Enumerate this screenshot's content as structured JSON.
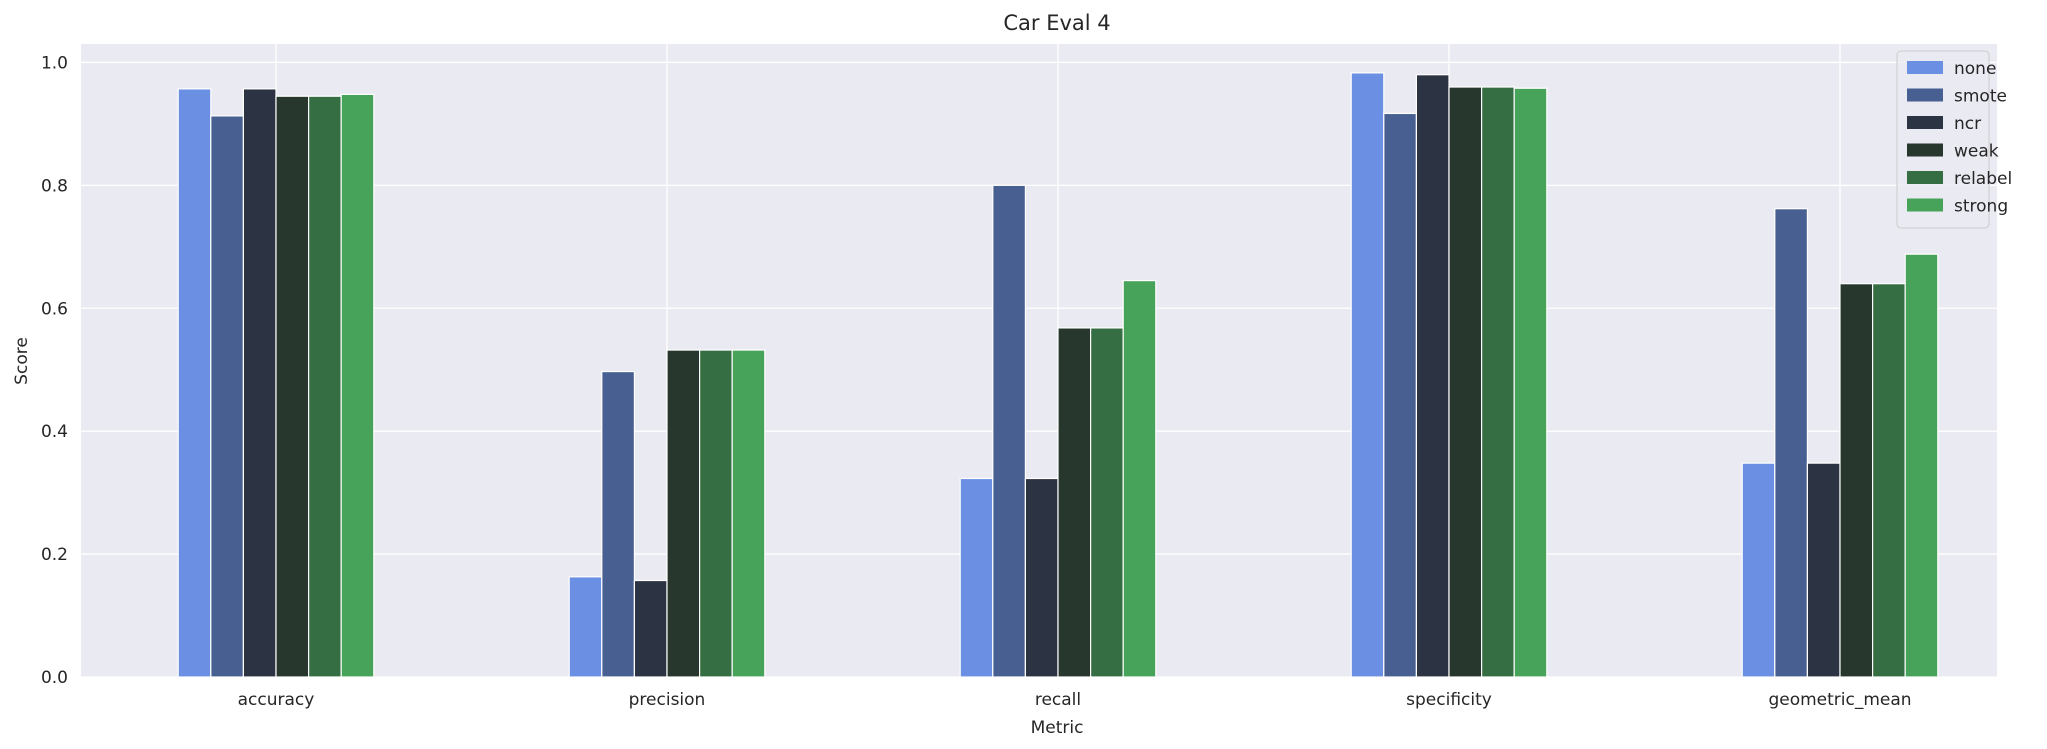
{
  "chart_data": {
    "type": "bar",
    "title": "Car Eval 4",
    "xlabel": "Metric",
    "ylabel": "Score",
    "ylim": [
      0,
      1.03
    ],
    "yticks": [
      0.0,
      0.2,
      0.4,
      0.6,
      0.8,
      1.0
    ],
    "ytick_labels": [
      "0.0",
      "0.2",
      "0.4",
      "0.6",
      "0.8",
      "1.0"
    ],
    "grid": true,
    "legend_position": "top-right",
    "categories": [
      "accuracy",
      "precision",
      "recall",
      "specificity",
      "geometric_mean"
    ],
    "series": [
      {
        "name": "none",
        "color": "#6a8fe3",
        "values": [
          0.957,
          0.163,
          0.323,
          0.983,
          0.348
        ]
      },
      {
        "name": "smote",
        "color": "#485f92",
        "values": [
          0.913,
          0.497,
          0.8,
          0.917,
          0.762
        ]
      },
      {
        "name": "ncr",
        "color": "#2c3343",
        "values": [
          0.957,
          0.157,
          0.323,
          0.98,
          0.348
        ]
      },
      {
        "name": "weak",
        "color": "#27372d",
        "values": [
          0.945,
          0.532,
          0.568,
          0.96,
          0.64
        ]
      },
      {
        "name": "relabel",
        "color": "#356e43",
        "values": [
          0.945,
          0.532,
          0.568,
          0.96,
          0.64
        ]
      },
      {
        "name": "strong",
        "color": "#47a25a",
        "values": [
          0.948,
          0.532,
          0.645,
          0.958,
          0.688
        ]
      }
    ]
  }
}
